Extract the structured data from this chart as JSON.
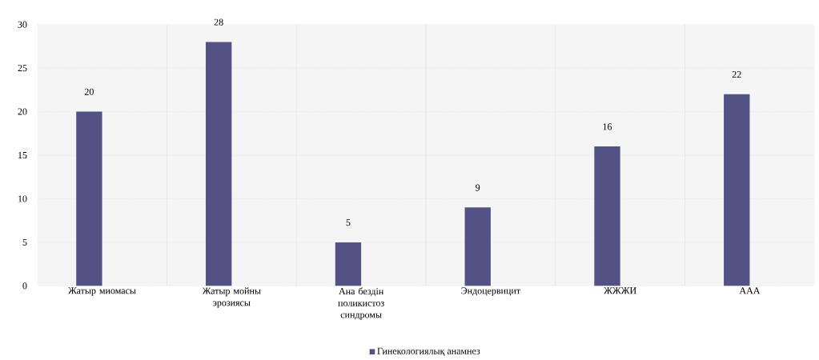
{
  "chart_data": {
    "type": "bar",
    "categories": [
      "Жатыр миомасы",
      "Жатыр мойны эрозиясы",
      "Ана бездін поликистоз синдромы",
      "Эндоцервицит",
      "ЖЖЖИ",
      "ААА"
    ],
    "series": [
      {
        "name": "Гинекологиялық анамнез",
        "color": "#545285",
        "values": [
          20,
          28,
          5,
          9,
          16,
          22
        ]
      },
      {
        "color": "#3e8a8a",
        "values": [
          null,
          null,
          null,
          null,
          null,
          null
        ]
      }
    ],
    "ylim": [
      0,
      30
    ],
    "yticks": [
      0,
      5,
      10,
      15,
      20,
      25,
      30
    ],
    "grid": true,
    "legend": "bottom",
    "data_labels": true
  }
}
